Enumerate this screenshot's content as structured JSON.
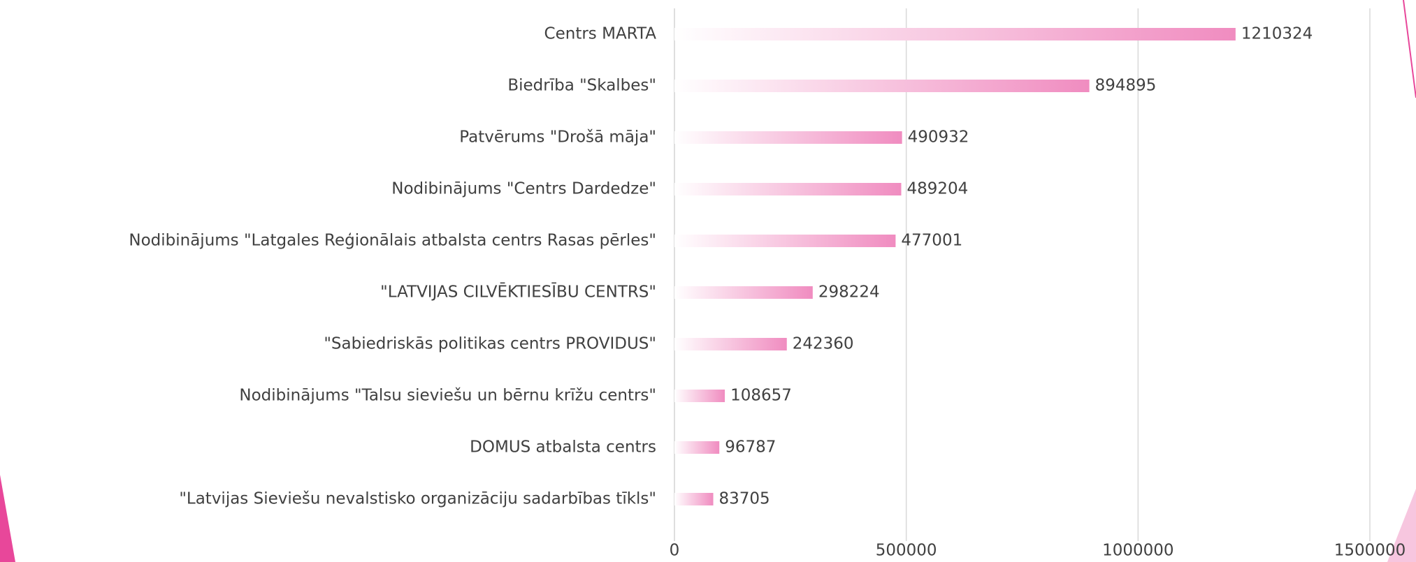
{
  "chart_data": {
    "type": "bar",
    "orientation": "horizontal",
    "categories": [
      "Centrs MARTA",
      "Biedrība \"Skalbes\"",
      "Patvērums \"Drošā māja\"",
      "Nodibinājums \"Centrs Dardedze\"",
      "Nodibinājums \"Latgales Reģionālais atbalsta centrs Rasas pērles\"",
      "\"LATVIJAS CILVĒKTIESĪBU CENTRS\"",
      "\"Sabiedriskās politikas centrs PROVIDUS\"",
      "Nodibinājums \"Talsu sieviešu un bērnu krīžu centrs\"",
      "DOMUS atbalsta centrs",
      "\"Latvijas Sieviešu nevalstisko organizāciju sadarbības tīkls\""
    ],
    "values": [
      1210324,
      894895,
      490932,
      489204,
      477001,
      298224,
      242360,
      108657,
      96787,
      83705
    ],
    "color": "#f08cc0",
    "xlim": [
      0,
      1500000
    ],
    "xticks": [
      0,
      500000,
      1000000,
      1500000
    ],
    "grid": true
  }
}
